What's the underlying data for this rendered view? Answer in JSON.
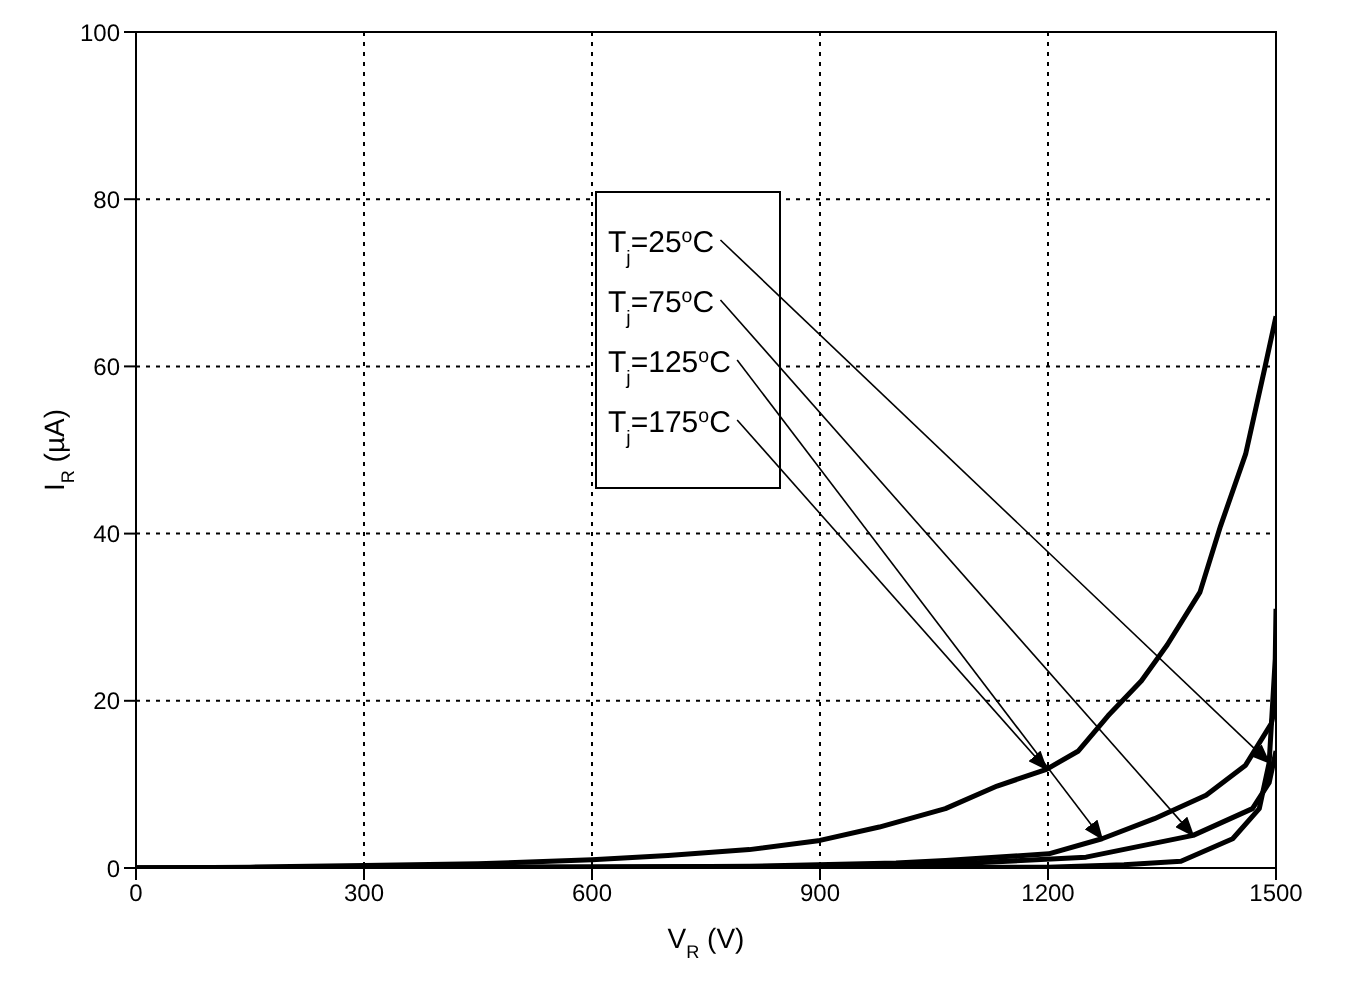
{
  "chart_data": {
    "type": "line",
    "xlabel": "V$_{R}$ (V)",
    "ylabel": "I$_{R}$ (µA)",
    "xlim": [
      0,
      1500
    ],
    "xticks": [
      0,
      300,
      600,
      900,
      1200,
      1500
    ],
    "ylim": [
      0,
      100
    ],
    "yticks": [
      0,
      20,
      40,
      60,
      80,
      100
    ],
    "grid": true,
    "line_style": "solid",
    "series": [
      {
        "color": "#000000",
        "x": [
          0,
          1200,
          1300,
          1375,
          1443,
          1478,
          1491,
          1499,
          1500
        ],
        "values": [
          0,
          0.1,
          0.4,
          0.8,
          3.5,
          7.1,
          12.6,
          25,
          31
        ]
      },
      {
        "color": "#000000",
        "x": [
          0,
          900,
          1100,
          1250,
          1391,
          1469,
          1491,
          1500
        ],
        "values": [
          0,
          0.2,
          0.6,
          1.3,
          3.9,
          7.1,
          10.2,
          14
        ]
      },
      {
        "color": "#000000",
        "x": [
          0,
          600,
          807,
          1000,
          1065,
          1201,
          1271,
          1340,
          1408,
          1460,
          1494,
          1500
        ],
        "values": [
          0,
          0.1,
          0.2,
          0.6,
          0.9,
          1.7,
          3.5,
          5.9,
          8.7,
          12.3,
          17.3,
          20
        ]
      },
      {
        "color": "#000000",
        "x": [
          0,
          150,
          300,
          450,
          600,
          700,
          807,
          900,
          978,
          1065,
          1133,
          1198,
          1240,
          1279,
          1323,
          1357,
          1400,
          1427,
          1460,
          1485,
          1500
        ],
        "values": [
          0,
          0.1,
          0.3,
          0.5,
          1,
          1.5,
          2.2,
          3.3,
          4.9,
          7.1,
          9.8,
          11.8,
          14,
          18.2,
          22.4,
          26.7,
          33,
          40.9,
          49.5,
          59.7,
          66
        ]
      }
    ],
    "annotations": [
      {
        "text": "T$_{j}$=25$^{o}$C",
        "x": 1491,
        "y": 12.6
      },
      {
        "text": "T$_{j}$=75$^{o}$C",
        "x": 1391,
        "y": 3.9
      },
      {
        "text": "T$_{j}$=125$^{o}$C",
        "x": 1271,
        "y": 3.5
      },
      {
        "text": "T$_{j}$=175$^{o}$C",
        "x": 1198,
        "y": 11.8
      }
    ]
  }
}
